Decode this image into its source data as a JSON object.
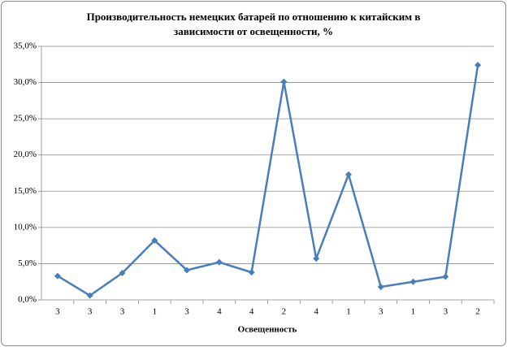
{
  "chart_data": {
    "type": "line",
    "title": "Производительность немецких батарей по отношению к китайским в зависимости от освещенности, %",
    "x_label": "Освещенность",
    "categories": [
      "3",
      "3",
      "3",
      "1",
      "3",
      "4",
      "4",
      "2",
      "4",
      "1",
      "3",
      "1",
      "3",
      "2"
    ],
    "values": [
      3.3,
      0.6,
      3.7,
      8.2,
      4.1,
      5.2,
      3.8,
      30.1,
      5.7,
      17.3,
      1.8,
      2.5,
      3.2,
      32.4
    ],
    "color": "#4a7ebb",
    "ylim": [
      0,
      35
    ],
    "yticks": [
      {
        "value": 0,
        "label": "0,0%"
      },
      {
        "value": 5,
        "label": "5,0%"
      },
      {
        "value": 10,
        "label": "10,0%"
      },
      {
        "value": 15,
        "label": "15,0%"
      },
      {
        "value": 20,
        "label": "20,0%"
      },
      {
        "value": 25,
        "label": "25,0%"
      },
      {
        "value": 30,
        "label": "30,0%"
      },
      {
        "value": 35,
        "label": "35,0%"
      }
    ],
    "grid": true
  }
}
